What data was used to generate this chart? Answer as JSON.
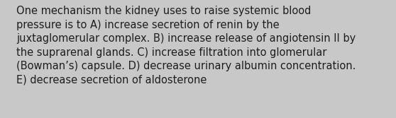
{
  "lines": [
    "One mechanism the kidney uses to raise systemic blood",
    "pressure is to A) increase secretion of renin by the",
    "juxtaglomerular complex. B) increase release of angiotensin II by",
    "the suprarenal glands. C) increase filtration into glomerular",
    "(Bowman’s) capsule. D) decrease urinary albumin concentration.",
    "E) decrease secretion of aldosterone"
  ],
  "background_color": "#c8c8c8",
  "text_color": "#1e1e1e",
  "font_size": 10.5,
  "fig_width": 5.58,
  "fig_height": 1.67,
  "dpi": 100
}
